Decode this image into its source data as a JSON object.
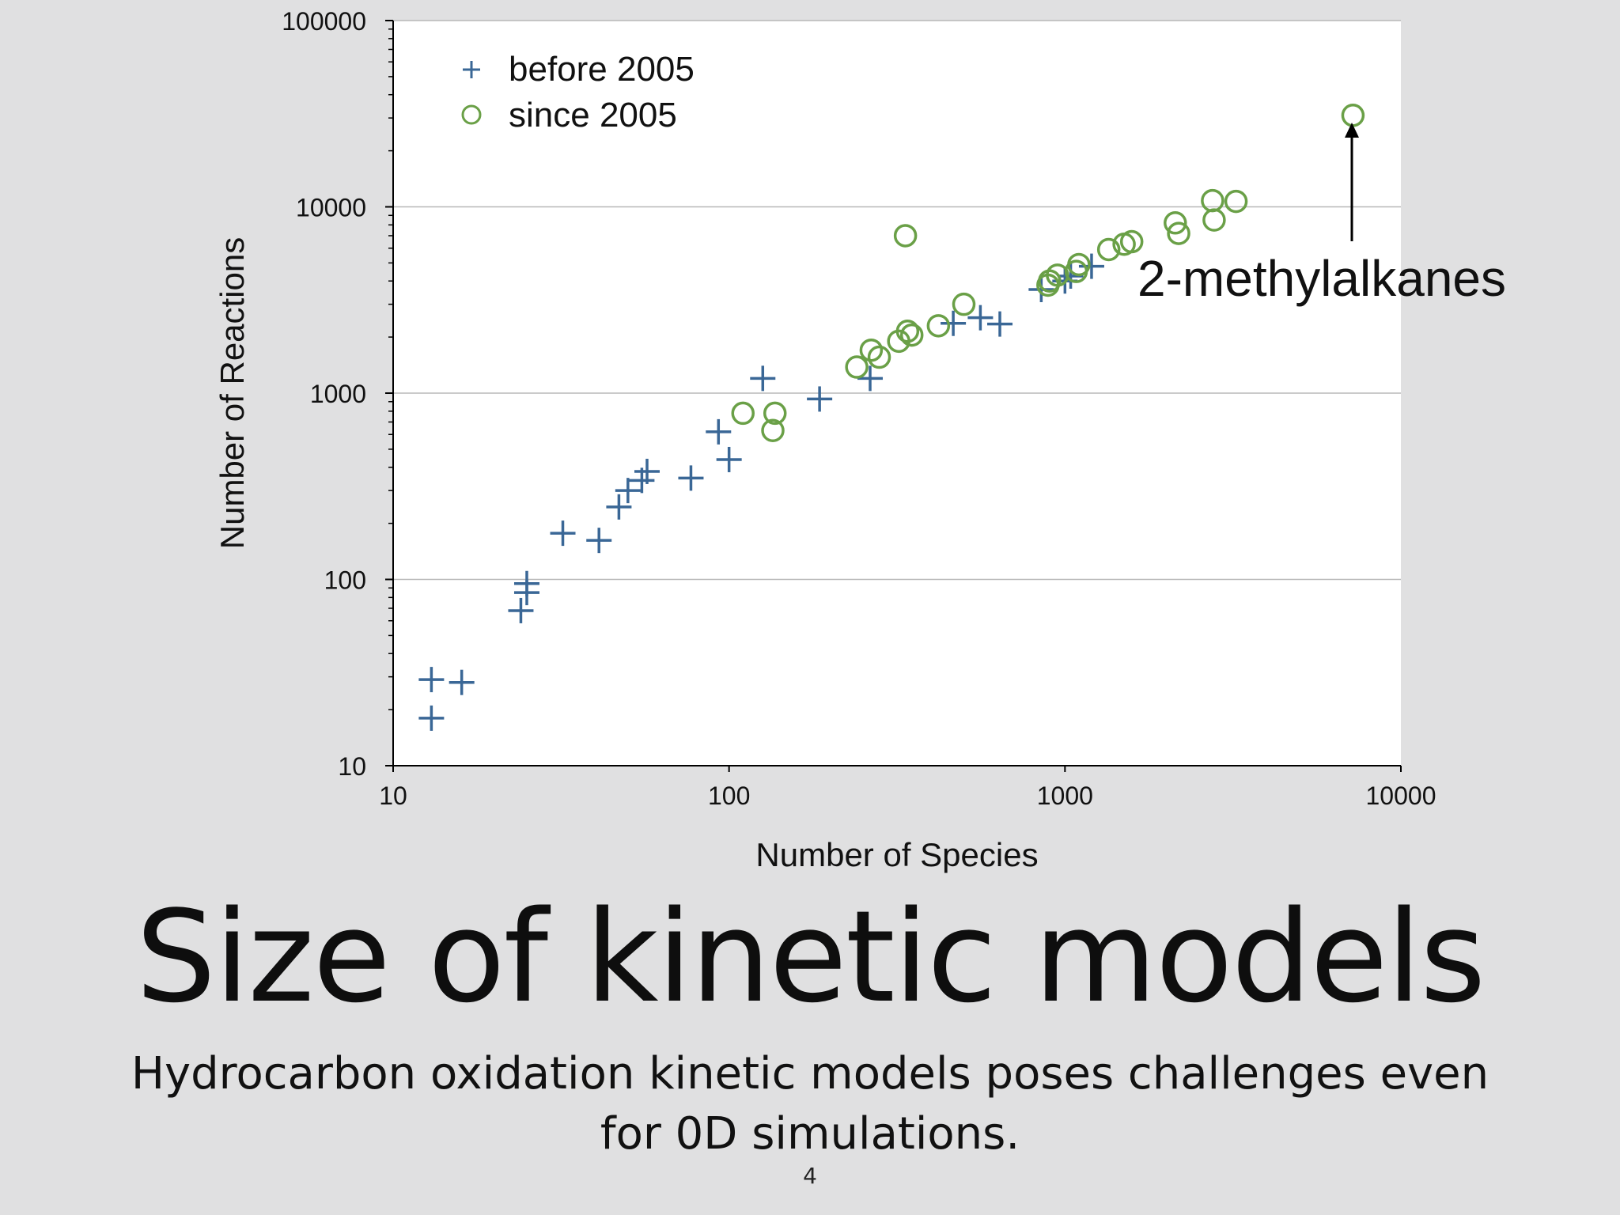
{
  "slide": {
    "title": "Size of kinetic models",
    "subtitle": "Hydrocarbon oxidation kinetic models poses challenges even for 0D simulations.",
    "page_number": "4"
  },
  "chart_data": {
    "type": "scatter",
    "x_scale": "log",
    "y_scale": "log",
    "xlim": [
      10,
      10000
    ],
    "ylim": [
      10,
      100000
    ],
    "xlabel": "Number of Species",
    "ylabel": "Number of Reactions",
    "x_ticks": [
      "10",
      "100",
      "1000",
      "10000"
    ],
    "y_ticks": [
      "10",
      "100",
      "1000",
      "10000",
      "100000"
    ],
    "grid": "horizontal",
    "legend_position": "top-left",
    "annotation": {
      "text": "2-methylalkanes",
      "target": [
        7200,
        31000
      ]
    },
    "series": [
      {
        "name": "before 2005",
        "marker": "plus",
        "color": "#3a6796",
        "points": [
          [
            13,
            18
          ],
          [
            13,
            29
          ],
          [
            16,
            28
          ],
          [
            24,
            68
          ],
          [
            25,
            85
          ],
          [
            25,
            95
          ],
          [
            32,
            177
          ],
          [
            41,
            162
          ],
          [
            47,
            245
          ],
          [
            50,
            300
          ],
          [
            55,
            340
          ],
          [
            57,
            380
          ],
          [
            77,
            350
          ],
          [
            93,
            620
          ],
          [
            100,
            440
          ],
          [
            126,
            1200
          ],
          [
            186,
            930
          ],
          [
            263,
            1200
          ],
          [
            465,
            2370
          ],
          [
            560,
            2540
          ],
          [
            640,
            2350
          ],
          [
            850,
            3600
          ],
          [
            1000,
            4000
          ],
          [
            1040,
            4250
          ],
          [
            1200,
            4800
          ]
        ]
      },
      {
        "name": "since 2005",
        "marker": "circle",
        "color": "#6aa047",
        "points": [
          [
            110,
            780
          ],
          [
            135,
            630
          ],
          [
            137,
            780
          ],
          [
            240,
            1380
          ],
          [
            265,
            1700
          ],
          [
            280,
            1560
          ],
          [
            320,
            1900
          ],
          [
            335,
            7000
          ],
          [
            340,
            2150
          ],
          [
            350,
            2050
          ],
          [
            420,
            2300
          ],
          [
            500,
            3000
          ],
          [
            890,
            3800
          ],
          [
            900,
            4000
          ],
          [
            950,
            4300
          ],
          [
            1080,
            4500
          ],
          [
            1100,
            4900
          ],
          [
            1350,
            5900
          ],
          [
            1500,
            6300
          ],
          [
            1580,
            6500
          ],
          [
            2130,
            8200
          ],
          [
            2180,
            7200
          ],
          [
            2750,
            10800
          ],
          [
            2780,
            8500
          ],
          [
            3230,
            10700
          ],
          [
            7200,
            31000
          ]
        ]
      }
    ]
  },
  "colors": {
    "background": "#e0e0e1",
    "plot_background": "#ffffff",
    "before": "#3a6796",
    "since": "#6aa047",
    "gridline": "#b8b8b8"
  }
}
